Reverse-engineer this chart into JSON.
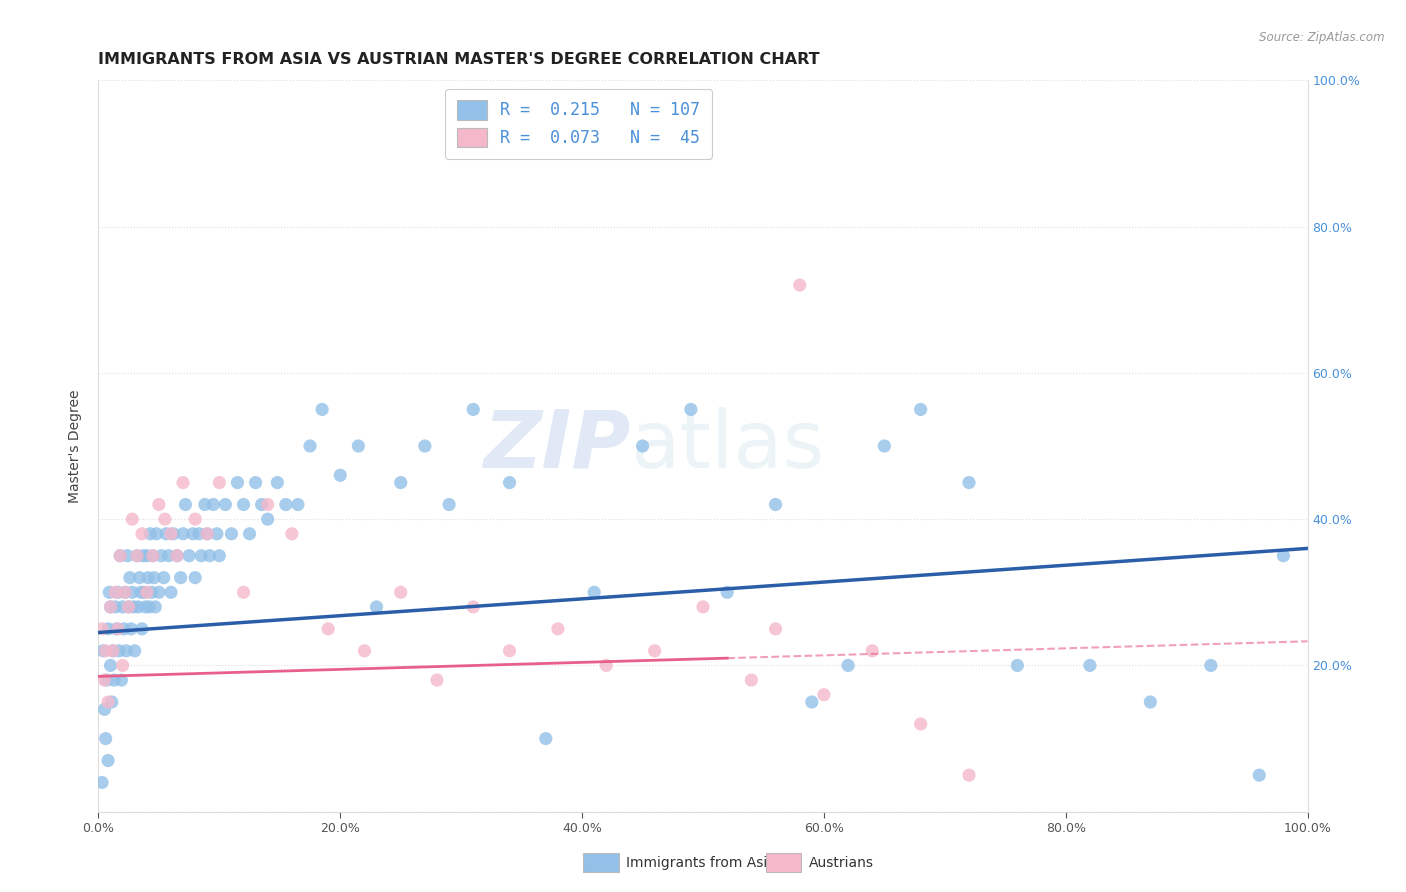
{
  "title": "IMMIGRANTS FROM ASIA VS AUSTRIAN MASTER'S DEGREE CORRELATION CHART",
  "source": "Source: ZipAtlas.com",
  "xlim": [
    0.0,
    1.0
  ],
  "ylim": [
    0.0,
    1.0
  ],
  "blue_color": "#92C0E8",
  "pink_color": "#F5B8CB",
  "blue_line_color": "#2B5EA8",
  "pink_line_color": "#E8608A",
  "legend_R_blue": "0.215",
  "legend_N_blue": "107",
  "legend_R_pink": "0.073",
  "legend_N_pink": "45",
  "blue_intercept": 0.245,
  "blue_slope": 0.115,
  "pink_intercept": 0.185,
  "pink_slope": 0.048,
  "blue_scatter_x": [
    0.003,
    0.004,
    0.005,
    0.006,
    0.007,
    0.008,
    0.008,
    0.009,
    0.01,
    0.01,
    0.011,
    0.012,
    0.013,
    0.014,
    0.015,
    0.016,
    0.017,
    0.018,
    0.019,
    0.02,
    0.021,
    0.022,
    0.023,
    0.024,
    0.025,
    0.026,
    0.027,
    0.028,
    0.029,
    0.03,
    0.032,
    0.033,
    0.034,
    0.035,
    0.036,
    0.037,
    0.038,
    0.039,
    0.04,
    0.041,
    0.042,
    0.043,
    0.044,
    0.045,
    0.046,
    0.047,
    0.048,
    0.05,
    0.052,
    0.054,
    0.056,
    0.058,
    0.06,
    0.062,
    0.065,
    0.068,
    0.07,
    0.072,
    0.075,
    0.078,
    0.08,
    0.083,
    0.085,
    0.088,
    0.09,
    0.092,
    0.095,
    0.098,
    0.1,
    0.105,
    0.11,
    0.115,
    0.12,
    0.125,
    0.13,
    0.135,
    0.14,
    0.148,
    0.155,
    0.165,
    0.175,
    0.185,
    0.2,
    0.215,
    0.23,
    0.25,
    0.27,
    0.29,
    0.31,
    0.34,
    0.37,
    0.41,
    0.45,
    0.49,
    0.52,
    0.56,
    0.59,
    0.62,
    0.65,
    0.68,
    0.72,
    0.76,
    0.82,
    0.87,
    0.92,
    0.96,
    0.98
  ],
  "blue_scatter_y": [
    0.04,
    0.22,
    0.14,
    0.1,
    0.18,
    0.07,
    0.25,
    0.3,
    0.2,
    0.28,
    0.15,
    0.22,
    0.18,
    0.28,
    0.25,
    0.3,
    0.22,
    0.35,
    0.18,
    0.28,
    0.25,
    0.3,
    0.22,
    0.35,
    0.28,
    0.32,
    0.25,
    0.3,
    0.28,
    0.22,
    0.35,
    0.28,
    0.32,
    0.3,
    0.25,
    0.35,
    0.3,
    0.28,
    0.35,
    0.32,
    0.28,
    0.38,
    0.3,
    0.35,
    0.32,
    0.28,
    0.38,
    0.3,
    0.35,
    0.32,
    0.38,
    0.35,
    0.3,
    0.38,
    0.35,
    0.32,
    0.38,
    0.42,
    0.35,
    0.38,
    0.32,
    0.38,
    0.35,
    0.42,
    0.38,
    0.35,
    0.42,
    0.38,
    0.35,
    0.42,
    0.38,
    0.45,
    0.42,
    0.38,
    0.45,
    0.42,
    0.4,
    0.45,
    0.42,
    0.42,
    0.5,
    0.55,
    0.46,
    0.5,
    0.28,
    0.45,
    0.5,
    0.42,
    0.55,
    0.45,
    0.1,
    0.3,
    0.5,
    0.55,
    0.3,
    0.42,
    0.15,
    0.2,
    0.5,
    0.55,
    0.45,
    0.2,
    0.2,
    0.15,
    0.2,
    0.05,
    0.35
  ],
  "pink_scatter_x": [
    0.003,
    0.005,
    0.006,
    0.008,
    0.01,
    0.012,
    0.014,
    0.016,
    0.018,
    0.02,
    0.022,
    0.025,
    0.028,
    0.032,
    0.036,
    0.04,
    0.045,
    0.05,
    0.055,
    0.06,
    0.065,
    0.07,
    0.08,
    0.09,
    0.1,
    0.12,
    0.14,
    0.16,
    0.19,
    0.22,
    0.25,
    0.28,
    0.31,
    0.34,
    0.38,
    0.42,
    0.46,
    0.5,
    0.54,
    0.56,
    0.58,
    0.6,
    0.64,
    0.68,
    0.72
  ],
  "pink_scatter_y": [
    0.25,
    0.18,
    0.22,
    0.15,
    0.28,
    0.22,
    0.3,
    0.25,
    0.35,
    0.2,
    0.3,
    0.28,
    0.4,
    0.35,
    0.38,
    0.3,
    0.35,
    0.42,
    0.4,
    0.38,
    0.35,
    0.45,
    0.4,
    0.38,
    0.45,
    0.3,
    0.42,
    0.38,
    0.25,
    0.22,
    0.3,
    0.18,
    0.28,
    0.22,
    0.25,
    0.2,
    0.22,
    0.28,
    0.18,
    0.25,
    0.72,
    0.16,
    0.22,
    0.12,
    0.05
  ],
  "watermark_zip": "ZIP",
  "watermark_atlas": "atlas",
  "legend_label_blue": "Immigrants from Asia",
  "legend_label_pink": "Austrians",
  "ylabel": "Master's Degree",
  "background_color": "#FFFFFF",
  "grid_color": "#DDDDDD",
  "title_fontsize": 11.5,
  "axis_label_fontsize": 10,
  "tick_fontsize": 9,
  "legend_fontsize": 12,
  "right_tick_color": "#4A90D9"
}
